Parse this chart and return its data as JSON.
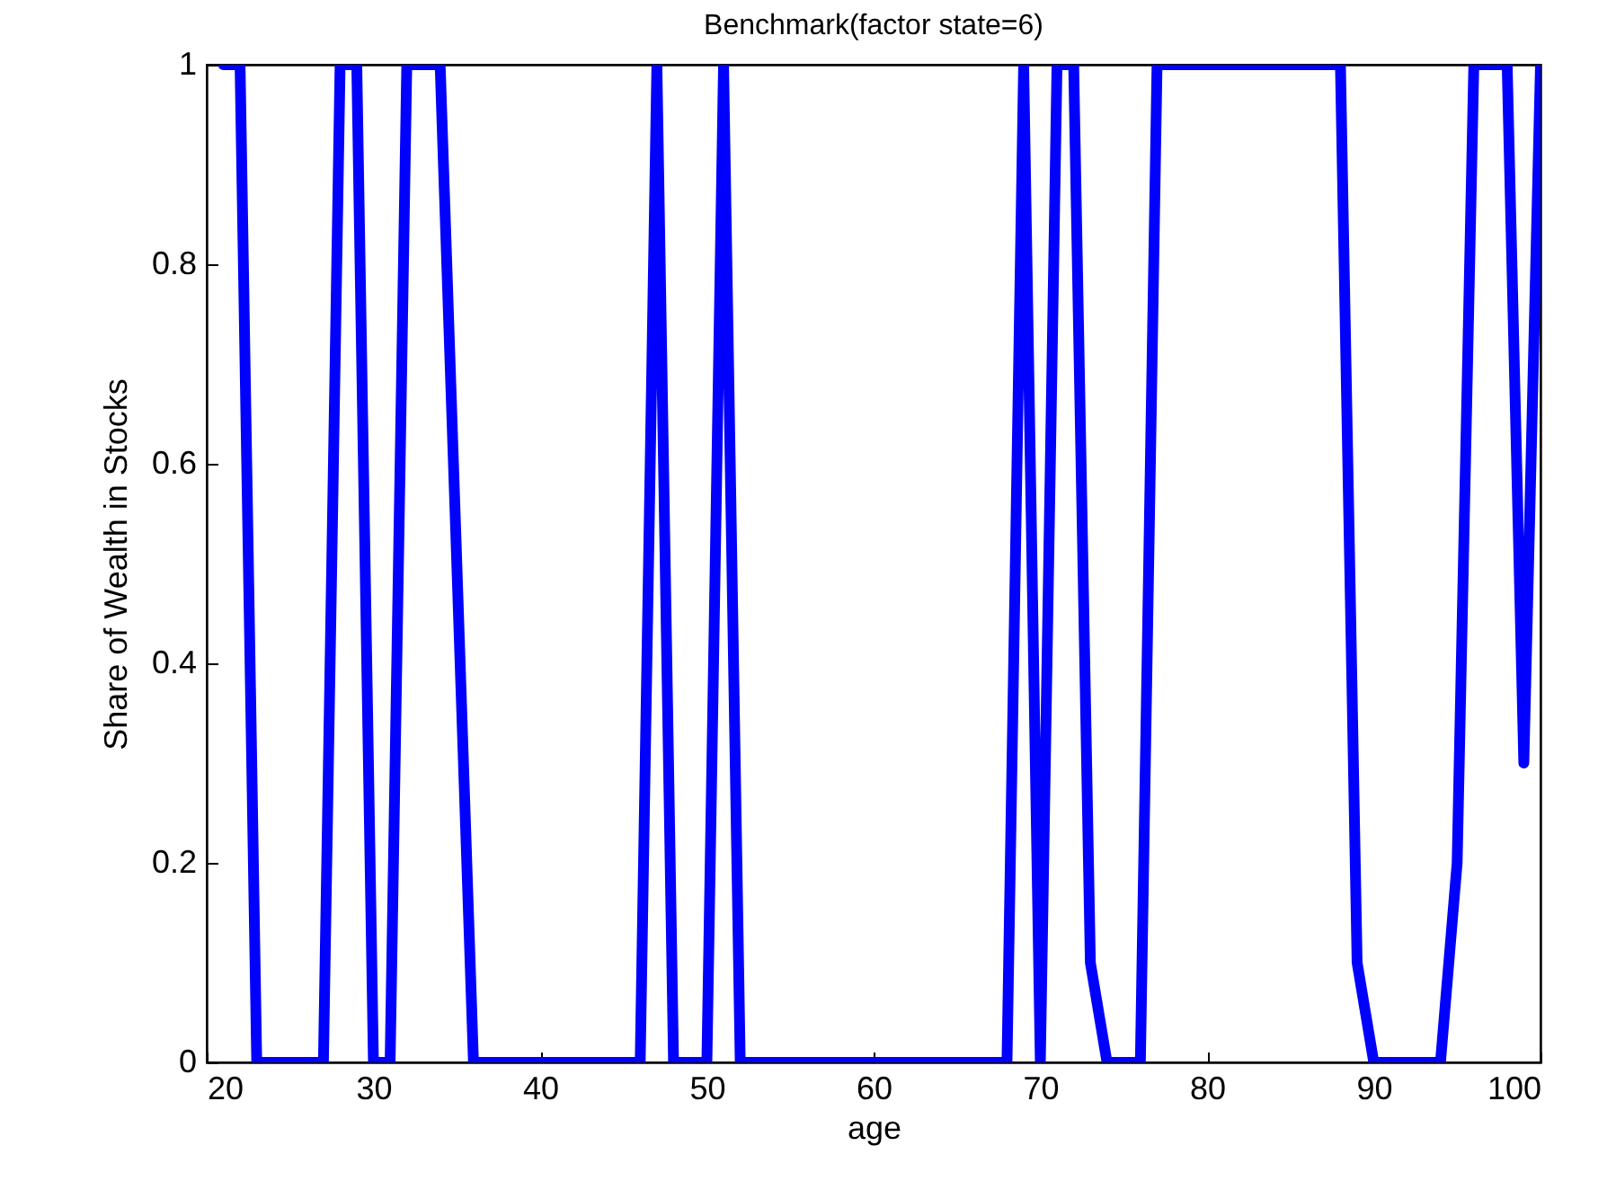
{
  "chart_data": {
    "type": "line",
    "title": "Benchmark(factor state=6)",
    "xlabel": "age",
    "ylabel": "Share of Wealth in Stocks",
    "x": [
      21,
      22,
      23,
      24,
      25,
      26,
      27,
      28,
      29,
      30,
      31,
      32,
      33,
      34,
      35,
      36,
      37,
      38,
      39,
      40,
      41,
      42,
      43,
      44,
      45,
      46,
      47,
      48,
      49,
      50,
      51,
      52,
      53,
      54,
      55,
      56,
      57,
      58,
      59,
      60,
      61,
      62,
      63,
      64,
      65,
      66,
      67,
      68,
      69,
      70,
      71,
      72,
      73,
      74,
      75,
      76,
      77,
      78,
      79,
      80,
      81,
      82,
      83,
      84,
      85,
      86,
      87,
      88,
      89,
      90,
      91,
      92,
      93,
      94,
      95,
      96,
      97,
      98,
      99,
      100
    ],
    "series": [
      {
        "color": "#0000ff",
        "values": [
          1,
          1,
          0,
          0,
          0,
          0,
          0,
          1,
          1,
          0,
          0,
          1,
          1,
          1,
          0.5,
          0,
          0,
          0,
          0,
          0,
          0,
          0,
          0,
          0,
          0,
          0,
          1,
          0,
          0,
          0,
          1,
          0,
          0,
          0,
          0,
          0,
          0,
          0,
          0,
          0,
          0,
          0,
          0,
          0,
          0,
          0,
          0,
          0,
          1,
          0,
          1,
          1,
          0.1,
          0,
          0,
          0,
          1,
          1,
          1,
          1,
          1,
          1,
          1,
          1,
          1,
          1,
          1,
          1,
          0.1,
          0,
          0,
          0,
          0,
          0,
          0.2,
          1,
          1,
          1,
          0.3,
          1
        ]
      }
    ],
    "xlim": [
      20,
      100
    ],
    "xticks": [
      20,
      30,
      40,
      50,
      60,
      70,
      80,
      90,
      100
    ],
    "ylim": [
      0,
      1
    ],
    "yticks": [
      0,
      0.2,
      0.4,
      0.6,
      0.8,
      1
    ],
    "grid": false,
    "legend": false,
    "marker": "none",
    "line_style": "solid"
  }
}
